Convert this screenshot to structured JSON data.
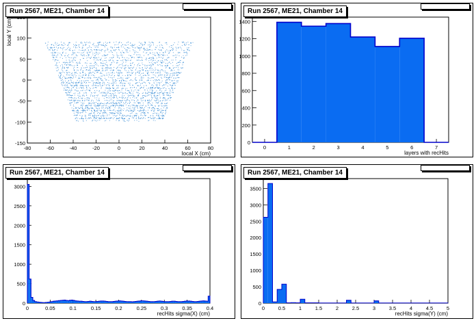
{
  "chart_data": [
    {
      "id": "p0",
      "type": "scatter",
      "title": "Run 2567, ME21, Chamber 14",
      "xlabel": "local X (cm)",
      "ylabel": "local Y (cm)",
      "xlim": [
        -80,
        80
      ],
      "ylim": [
        -150,
        150
      ],
      "xticks": [
        -80,
        -60,
        -40,
        -20,
        0,
        20,
        40,
        60,
        80
      ],
      "yticks": [
        -150,
        -100,
        -50,
        0,
        50,
        100,
        150
      ],
      "color": "#3d8fd6",
      "region": {
        "y_range": [
          -95,
          92
        ],
        "halfwidth_at_ymin": 38,
        "halfwidth_at_ymax": 65
      },
      "grid": false
    },
    {
      "id": "p1",
      "type": "bar",
      "title": "Run 2567, ME21, Chamber 14",
      "xlabel": "layers with recHits",
      "ylabel": "",
      "xlim": [
        -0.5,
        7.5
      ],
      "ylim": [
        0,
        1450
      ],
      "xticks": [
        0,
        1,
        2,
        3,
        4,
        5,
        6,
        7
      ],
      "yticks": [
        0,
        200,
        400,
        600,
        800,
        1000,
        1200,
        1400
      ],
      "bin_width": 1,
      "x": [
        1,
        2,
        3,
        4,
        5,
        6
      ],
      "values": [
        1390,
        1345,
        1375,
        1220,
        1110,
        1205
      ],
      "color": "#0a6cf2",
      "grid": false
    },
    {
      "id": "p2",
      "type": "bar",
      "title": "Run 2567, ME21, Chamber 14",
      "xlabel": "recHits sigma(X) (cm)",
      "ylabel": "",
      "xlim": [
        0,
        0.4
      ],
      "ylim": [
        0,
        3200
      ],
      "xticks": [
        0,
        0.05,
        0.1,
        0.15,
        0.2,
        0.25,
        0.3,
        0.35,
        0.4
      ],
      "xtick_labels": [
        "0",
        "0.05",
        "0.1",
        "0.15",
        "0.2",
        "0.25",
        "0.3",
        "0.35",
        "0.4"
      ],
      "yticks": [
        0,
        500,
        1000,
        1500,
        2000,
        2500,
        3000
      ],
      "bin_width": 0.004,
      "values": [
        3050,
        620,
        150,
        70,
        40,
        30,
        25,
        20,
        15,
        15,
        20,
        25,
        30,
        40,
        50,
        55,
        60,
        65,
        70,
        75,
        80,
        70,
        65,
        75,
        80,
        70,
        60,
        55,
        50,
        50,
        45,
        40,
        40,
        45,
        50,
        45,
        40,
        40,
        45,
        50,
        55,
        55,
        50,
        45,
        40,
        40,
        40,
        45,
        50,
        55,
        60,
        55,
        50,
        45,
        40,
        40,
        40,
        35,
        40,
        45,
        50,
        55,
        60,
        60,
        55,
        50,
        45,
        40,
        40,
        40,
        45,
        50,
        55,
        50,
        45,
        40,
        40,
        40,
        45,
        50,
        50,
        45,
        40,
        40,
        40,
        45,
        50,
        55,
        55,
        50,
        45,
        40,
        40,
        45,
        50,
        55,
        60,
        55,
        50,
        180
      ],
      "color": "#0a6cf2",
      "grid": false
    },
    {
      "id": "p3",
      "type": "bar",
      "title": "Run 2567, ME21, Chamber 14",
      "xlabel": "recHits sigma(Y) (cm)",
      "ylabel": "",
      "xlim": [
        0,
        5
      ],
      "ylim": [
        0,
        3800
      ],
      "xticks": [
        0,
        0.5,
        1,
        1.5,
        2,
        2.5,
        3,
        3.5,
        4,
        4.5,
        5
      ],
      "xtick_labels": [
        "0",
        "0.5",
        "1",
        "1.5",
        "2",
        "2.5",
        "3",
        "3.5",
        "4",
        "4.5",
        "5"
      ],
      "yticks": [
        0,
        500,
        1000,
        1500,
        2000,
        2500,
        3000,
        3500
      ],
      "bin_width": 0.125,
      "values": [
        2620,
        3650,
        40,
        420,
        580,
        10,
        15,
        10,
        120,
        10,
        10,
        10,
        5,
        5,
        5,
        5,
        5,
        5,
        90,
        5,
        5,
        5,
        5,
        5,
        70,
        5,
        5,
        5,
        5,
        5,
        5,
        5,
        5,
        5,
        5,
        5,
        5,
        5,
        5,
        5
      ],
      "color": "#0a6cf2",
      "grid": false
    }
  ]
}
